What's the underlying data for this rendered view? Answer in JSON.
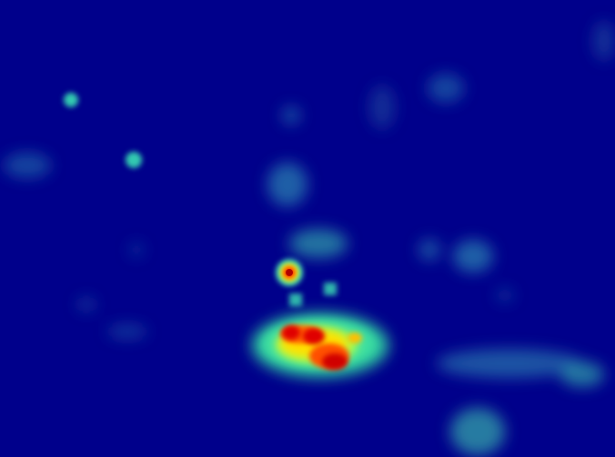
{
  "image": {
    "kind": "saliency heatmap",
    "colormap": "jet",
    "background_color": "#00008b",
    "colors": {
      "low": "#00008b",
      "mid_low": "#0000ff",
      "mid": "#00c8c8",
      "mid_high": "#ffff00",
      "high": "#ff0000",
      "peak": "#8b0000"
    }
  }
}
